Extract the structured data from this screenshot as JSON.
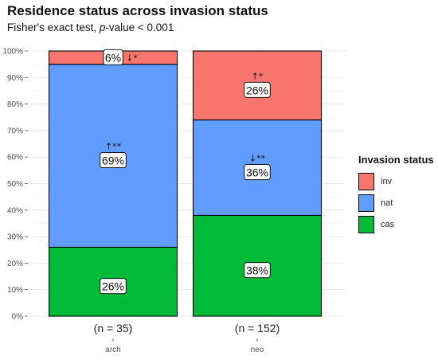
{
  "title": "Residence status across invasion status",
  "subtitle": {
    "prefix": "Fisher's exact test, ",
    "p": "p",
    "suffix": "-value < 0.001"
  },
  "legend": {
    "title": "Invasion status",
    "items": [
      {
        "label": "inv",
        "color": "#F8766D"
      },
      {
        "label": "nat",
        "color": "#619CFF"
      },
      {
        "label": "cas",
        "color": "#00BA38"
      }
    ]
  },
  "chart_data": {
    "type": "bar",
    "stacked": true,
    "orientation": "vertical",
    "categories": [
      "arch",
      "neo"
    ],
    "category_labels": [
      "(n = 35)",
      "(n = 152)"
    ],
    "series": [
      {
        "name": "cas",
        "color": "#00BA38",
        "values": [
          0.26,
          0.38
        ],
        "labels": [
          "26%",
          "38%"
        ],
        "marks": [
          "",
          ""
        ]
      },
      {
        "name": "nat",
        "color": "#619CFF",
        "values": [
          0.69,
          0.36
        ],
        "labels": [
          "69%",
          "36%"
        ],
        "marks": [
          "↑**",
          "↓**"
        ]
      },
      {
        "name": "inv",
        "color": "#F8766D",
        "values": [
          0.06,
          0.26
        ],
        "labels": [
          "6%",
          "26%"
        ],
        "marks": [
          "↓*",
          "↑*"
        ]
      }
    ],
    "ylim": [
      0,
      1
    ],
    "yticks": [
      0,
      0.1,
      0.2,
      0.3,
      0.4,
      0.5,
      0.6,
      0.7,
      0.8,
      0.9,
      1.0
    ],
    "ytick_labels": [
      "0%",
      "10%",
      "20%",
      "30%",
      "40%",
      "50%",
      "60%",
      "70%",
      "80%",
      "90%",
      "100%"
    ],
    "grid": true,
    "legend_position": "right"
  }
}
